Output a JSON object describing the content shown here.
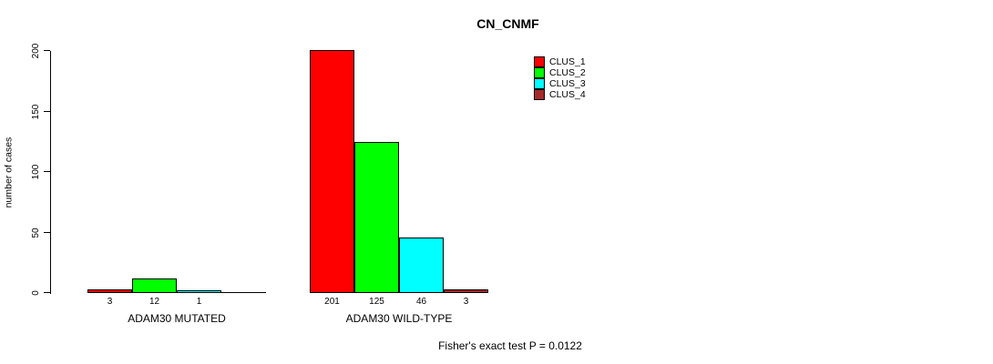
{
  "title": "CN_CNMF",
  "footer": "Fisher's exact test P = 0.0122",
  "chart_data": {
    "type": "bar",
    "title": "CN_CNMF",
    "xlabel": "",
    "ylabel": "number of cases",
    "ylim": [
      0,
      200
    ],
    "yticks": [
      0,
      50,
      100,
      150,
      200
    ],
    "grid": false,
    "legend_position": "top-right",
    "bar_value_labels": true,
    "categories": [
      "ADAM30 MUTATED",
      "ADAM30 WILD-TYPE"
    ],
    "series": [
      {
        "name": "CLUS_1",
        "color": "#FF0000",
        "values": [
          3,
          201
        ]
      },
      {
        "name": "CLUS_2",
        "color": "#00FF00",
        "values": [
          12,
          125
        ]
      },
      {
        "name": "CLUS_3",
        "color": "#00FFFF",
        "values": [
          1,
          46
        ]
      },
      {
        "name": "CLUS_4",
        "color": "#A52A2A",
        "values": [
          0,
          3
        ]
      }
    ],
    "annotation": "Fisher's exact test P = 0.0122"
  }
}
